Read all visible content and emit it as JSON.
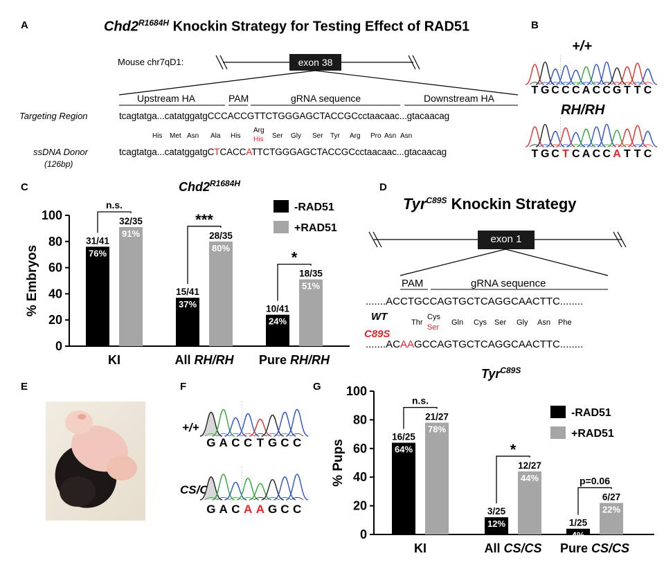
{
  "panelA": {
    "label": "A",
    "title_gene": "Chd2",
    "title_sup": "R1684H",
    "title_rest": " Knockin Strategy for Testing Effect of RAD51",
    "chrom": "Mouse chr7qD1:",
    "exon": "exon 38",
    "upstream": "Upstream HA",
    "pam": "PAM",
    "grna": "gRNA sequence",
    "downstream": "Downstream HA",
    "target_label": "Targeting Region",
    "target_seq": "tcagtatga...catatggatgCCCACCGTTCTGGGAGCTACCGCcctaacaac...gtacaacag",
    "aa_list": [
      "His",
      "Met",
      "Asn",
      "Ala",
      "His",
      "Arg",
      "Ser",
      "Gly",
      "Ser",
      "Tyr",
      "Arg",
      "Pro",
      "Asn",
      "Asn"
    ],
    "aa_his": "His",
    "donor_label": "ssDNA Donor",
    "donor_len": "(126bp)",
    "donor_seq_pre": "tcagtatga...catatggatgC",
    "donor_mut1": "T",
    "donor_seq_mid": "CACC",
    "donor_mut2": "A",
    "donor_seq_post": "TTCTGGGAGCTACCGCcctaacaac...gtacaacag"
  },
  "panelB": {
    "label": "B",
    "wt": "+/+",
    "wt_seq": [
      "T",
      "G",
      "C",
      "C",
      "C",
      "A",
      "C",
      "C",
      "G",
      "T",
      "T",
      "C"
    ],
    "mut": "RH/RH",
    "mut_seq": [
      "T",
      "G",
      "C",
      "T",
      "C",
      "A",
      "C",
      "C",
      "A",
      "T",
      "T",
      "C"
    ],
    "mut_red": [
      3,
      8
    ]
  },
  "panelC": {
    "label": "C",
    "chart_data": {
      "type": "bar",
      "title": "Chd2 R1684H",
      "ylabel": "% Embryos",
      "ylim": [
        0,
        100
      ],
      "yticks": [
        "0",
        "20",
        "40",
        "60",
        "80",
        "100"
      ],
      "categories": [
        "KI",
        "All RH/RH",
        "Pure RH/RH"
      ],
      "series": [
        {
          "name": "-RAD51",
          "values": [
            76,
            37,
            24
          ],
          "labels": [
            "76%",
            "37%",
            "24%"
          ],
          "counts": [
            "31/41",
            "15/41",
            "10/41"
          ],
          "color": "#000000"
        },
        {
          "name": "+RAD51",
          "values": [
            91,
            80,
            51
          ],
          "labels": [
            "91%",
            "80%",
            "51%"
          ],
          "counts": [
            "32/35",
            "28/35",
            "18/35"
          ],
          "color": "#a6a6a6"
        }
      ],
      "significance": [
        "n.s.",
        "***",
        "*"
      ]
    },
    "cat_main": [
      "KI",
      "All ",
      "Pure "
    ],
    "cat_italic": [
      "",
      "RH/RH",
      "RH/RH"
    ]
  },
  "panelD": {
    "label": "D",
    "title_gene": "Tyr",
    "title_sup": "C89S",
    "title_rest": " Knockin Strategy",
    "exon": "exon 1",
    "pam": "PAM",
    "grna": "gRNA sequence",
    "wt_seq": ".......ACCTGCCAGTGCTCAGGCAACTTC........",
    "wt": "WT",
    "mut": "C89S",
    "aa_list": [
      "Thr",
      "Cys",
      "Gln",
      "Cys",
      "Ser",
      "Gly",
      "Asn",
      "Phe"
    ],
    "aa_ser": "Ser",
    "mut_pre": ".......AC",
    "mut_red": "AA",
    "mut_post": "GCCAGTGCTCAGGCAACTTC........"
  },
  "panelE": {
    "label": "E"
  },
  "panelF": {
    "label": "F",
    "wt": "+/+",
    "wt_seq": [
      "G",
      "A",
      "C",
      "C",
      "T",
      "G",
      "C",
      "C"
    ],
    "mut": "CS/CS",
    "mut_seq": [
      "G",
      "A",
      "C",
      "A",
      "A",
      "G",
      "C",
      "C"
    ],
    "mut_red": [
      3,
      4
    ]
  },
  "panelG": {
    "label": "G",
    "chart_data": {
      "type": "bar",
      "title": "Tyr C89S",
      "ylabel": "% Pups",
      "ylim": [
        0,
        100
      ],
      "yticks": [
        "0",
        "20",
        "40",
        "60",
        "80",
        "100"
      ],
      "categories": [
        "KI",
        "All CS/CS",
        "Pure CS/CS"
      ],
      "series": [
        {
          "name": "-RAD51",
          "values": [
            64,
            12,
            4
          ],
          "labels": [
            "64%",
            "12%",
            "4%"
          ],
          "counts": [
            "16/25",
            "3/25",
            "1/25"
          ],
          "color": "#000000"
        },
        {
          "name": "+RAD51",
          "values": [
            78,
            44,
            22
          ],
          "labels": [
            "78%",
            "44%",
            "22%"
          ],
          "counts": [
            "21/27",
            "12/27",
            "6/27"
          ],
          "color": "#a6a6a6"
        }
      ],
      "significance": [
        "n.s.",
        "*",
        "p=0.06"
      ]
    },
    "cat_main": [
      "KI",
      "All ",
      "Pure "
    ],
    "cat_italic": [
      "",
      "CS/CS",
      "CS/CS"
    ]
  }
}
